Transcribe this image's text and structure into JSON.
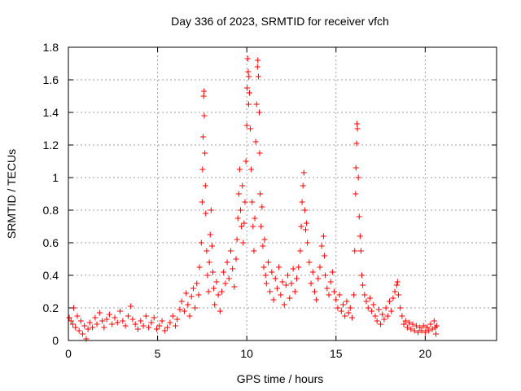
{
  "chart_data": {
    "type": "scatter",
    "title": "Day 336 of 2023, SRMTID for receiver vfch",
    "xlabel": "GPS time / hours",
    "ylabel": "SRMTID / TECUs",
    "xlim": [
      0,
      24
    ],
    "ylim": [
      0,
      1.8
    ],
    "xticks": [
      0,
      5,
      10,
      15,
      20
    ],
    "yticks": [
      0,
      0.2,
      0.4,
      0.6,
      0.8,
      1,
      1.2,
      1.4,
      1.6,
      1.8
    ],
    "grid": true,
    "marker": "+",
    "color": "#ff0000",
    "series": [
      {
        "name": "SRMTID",
        "points": [
          [
            0.05,
            0.14
          ],
          [
            0.15,
            0.12
          ],
          [
            0.25,
            0.1
          ],
          [
            0.3,
            0.2
          ],
          [
            0.4,
            0.08
          ],
          [
            0.5,
            0.15
          ],
          [
            0.6,
            0.06
          ],
          [
            0.7,
            0.12
          ],
          [
            0.8,
            0.04
          ],
          [
            0.9,
            0.09
          ],
          [
            1.0,
            0.01
          ],
          [
            1.1,
            0.07
          ],
          [
            1.2,
            0.11
          ],
          [
            1.35,
            0.08
          ],
          [
            1.5,
            0.14
          ],
          [
            1.6,
            0.1
          ],
          [
            1.75,
            0.17
          ],
          [
            1.9,
            0.12
          ],
          [
            2.0,
            0.08
          ],
          [
            2.15,
            0.13
          ],
          [
            2.3,
            0.16
          ],
          [
            2.45,
            0.1
          ],
          [
            2.6,
            0.14
          ],
          [
            2.75,
            0.11
          ],
          [
            2.9,
            0.18
          ],
          [
            3.05,
            0.12
          ],
          [
            3.2,
            0.09
          ],
          [
            3.35,
            0.15
          ],
          [
            3.5,
            0.21
          ],
          [
            3.6,
            0.13
          ],
          [
            3.75,
            0.1
          ],
          [
            3.9,
            0.07
          ],
          [
            4.05,
            0.12
          ],
          [
            4.2,
            0.09
          ],
          [
            4.35,
            0.15
          ],
          [
            4.5,
            0.08
          ],
          [
            4.65,
            0.11
          ],
          [
            4.8,
            0.14
          ],
          [
            4.95,
            0.07
          ],
          [
            5.1,
            0.09
          ],
          [
            5.25,
            0.12
          ],
          [
            5.4,
            0.06
          ],
          [
            5.55,
            0.08
          ],
          [
            5.7,
            0.11
          ],
          [
            5.85,
            0.15
          ],
          [
            6.0,
            0.09
          ],
          [
            6.1,
            0.13
          ],
          [
            6.25,
            0.19
          ],
          [
            6.35,
            0.24
          ],
          [
            6.5,
            0.18
          ],
          [
            6.6,
            0.29
          ],
          [
            6.7,
            0.22
          ],
          [
            6.8,
            0.15
          ],
          [
            6.9,
            0.27
          ],
          [
            7.0,
            0.32
          ],
          [
            7.1,
            0.2
          ],
          [
            7.2,
            0.35
          ],
          [
            7.3,
            0.28
          ],
          [
            7.35,
            0.45
          ],
          [
            7.45,
            0.6
          ],
          [
            7.5,
            0.85
          ],
          [
            7.52,
            1.05
          ],
          [
            7.55,
            1.25
          ],
          [
            7.58,
            1.5
          ],
          [
            7.6,
            1.53
          ],
          [
            7.62,
            1.38
          ],
          [
            7.65,
            1.15
          ],
          [
            7.68,
            0.95
          ],
          [
            7.7,
            0.78
          ],
          [
            7.75,
            0.55
          ],
          [
            7.8,
            0.4
          ],
          [
            7.85,
            0.3
          ],
          [
            7.9,
            0.48
          ],
          [
            7.95,
            0.65
          ],
          [
            8.0,
            0.8
          ],
          [
            8.05,
            0.58
          ],
          [
            8.1,
            0.42
          ],
          [
            8.15,
            0.32
          ],
          [
            8.2,
            0.22
          ],
          [
            8.3,
            0.36
          ],
          [
            8.4,
            0.28
          ],
          [
            8.5,
            0.18
          ],
          [
            8.6,
            0.3
          ],
          [
            8.7,
            0.42
          ],
          [
            8.8,
            0.35
          ],
          [
            8.9,
            0.48
          ],
          [
            9.0,
            0.38
          ],
          [
            9.1,
            0.55
          ],
          [
            9.2,
            0.44
          ],
          [
            9.3,
            0.33
          ],
          [
            9.4,
            0.5
          ],
          [
            9.45,
            0.62
          ],
          [
            9.5,
            0.75
          ],
          [
            9.55,
            0.9
          ],
          [
            9.6,
            1.05
          ],
          [
            9.65,
            0.8
          ],
          [
            9.7,
            0.7
          ],
          [
            9.75,
            0.95
          ],
          [
            9.8,
            0.6
          ],
          [
            9.85,
            0.72
          ],
          [
            9.9,
            0.85
          ],
          [
            9.95,
            1.1
          ],
          [
            10.0,
            1.32
          ],
          [
            10.02,
            1.55
          ],
          [
            10.05,
            1.73
          ],
          [
            10.08,
            1.65
          ],
          [
            10.1,
            1.45
          ],
          [
            10.12,
            1.62
          ],
          [
            10.15,
            1.52
          ],
          [
            10.2,
            1.3
          ],
          [
            10.25,
            1.05
          ],
          [
            10.3,
            0.85
          ],
          [
            10.35,
            0.7
          ],
          [
            10.4,
            0.55
          ],
          [
            10.45,
            0.75
          ],
          [
            10.5,
            1.22
          ],
          [
            10.55,
            1.45
          ],
          [
            10.6,
            1.68
          ],
          [
            10.62,
            1.72
          ],
          [
            10.65,
            1.62
          ],
          [
            10.7,
            1.4
          ],
          [
            10.72,
            1.15
          ],
          [
            10.75,
            0.9
          ],
          [
            10.8,
            0.7
          ],
          [
            10.85,
            0.82
          ],
          [
            10.9,
            0.58
          ],
          [
            10.95,
            0.45
          ],
          [
            11.0,
            0.62
          ],
          [
            11.05,
            0.4
          ],
          [
            11.1,
            0.35
          ],
          [
            11.2,
            0.48
          ],
          [
            11.3,
            0.3
          ],
          [
            11.4,
            0.42
          ],
          [
            11.5,
            0.25
          ],
          [
            11.6,
            0.38
          ],
          [
            11.7,
            0.32
          ],
          [
            11.8,
            0.45
          ],
          [
            11.9,
            0.28
          ],
          [
            12.0,
            0.36
          ],
          [
            12.1,
            0.22
          ],
          [
            12.2,
            0.34
          ],
          [
            12.3,
            0.4
          ],
          [
            12.4,
            0.26
          ],
          [
            12.5,
            0.35
          ],
          [
            12.6,
            0.44
          ],
          [
            12.7,
            0.3
          ],
          [
            12.8,
            0.38
          ],
          [
            12.9,
            0.45
          ],
          [
            13.0,
            0.55
          ],
          [
            13.05,
            0.7
          ],
          [
            13.1,
            0.85
          ],
          [
            13.15,
            0.95
          ],
          [
            13.2,
            1.03
          ],
          [
            13.25,
            0.8
          ],
          [
            13.3,
            0.68
          ],
          [
            13.35,
            0.72
          ],
          [
            13.4,
            0.6
          ],
          [
            13.5,
            0.48
          ],
          [
            13.6,
            0.35
          ],
          [
            13.7,
            0.42
          ],
          [
            13.8,
            0.3
          ],
          [
            13.9,
            0.25
          ],
          [
            14.0,
            0.38
          ],
          [
            14.1,
            0.45
          ],
          [
            14.2,
            0.58
          ],
          [
            14.3,
            0.64
          ],
          [
            14.35,
            0.52
          ],
          [
            14.4,
            0.4
          ],
          [
            14.5,
            0.32
          ],
          [
            14.6,
            0.28
          ],
          [
            14.7,
            0.36
          ],
          [
            14.8,
            0.42
          ],
          [
            14.9,
            0.3
          ],
          [
            15.0,
            0.25
          ],
          [
            15.1,
            0.2
          ],
          [
            15.2,
            0.28
          ],
          [
            15.3,
            0.18
          ],
          [
            15.4,
            0.22
          ],
          [
            15.5,
            0.15
          ],
          [
            15.6,
            0.24
          ],
          [
            15.7,
            0.17
          ],
          [
            15.8,
            0.2
          ],
          [
            15.9,
            0.14
          ],
          [
            16.0,
            0.28
          ],
          [
            16.05,
            0.55
          ],
          [
            16.1,
            0.9
          ],
          [
            16.12,
            1.06
          ],
          [
            16.15,
            1.21
          ],
          [
            16.18,
            1.33
          ],
          [
            16.2,
            1.3
          ],
          [
            16.25,
            1.0
          ],
          [
            16.3,
            0.76
          ],
          [
            16.35,
            0.64
          ],
          [
            16.4,
            0.55
          ],
          [
            16.45,
            0.4
          ],
          [
            16.5,
            0.34
          ],
          [
            16.6,
            0.28
          ],
          [
            16.7,
            0.24
          ],
          [
            16.8,
            0.2
          ],
          [
            16.9,
            0.26
          ],
          [
            17.0,
            0.18
          ],
          [
            17.1,
            0.22
          ],
          [
            17.2,
            0.15
          ],
          [
            17.3,
            0.12
          ],
          [
            17.4,
            0.19
          ],
          [
            17.5,
            0.1
          ],
          [
            17.6,
            0.16
          ],
          [
            17.7,
            0.13
          ],
          [
            17.8,
            0.2
          ],
          [
            17.9,
            0.15
          ],
          [
            18.0,
            0.24
          ],
          [
            18.1,
            0.18
          ],
          [
            18.2,
            0.26
          ],
          [
            18.3,
            0.3
          ],
          [
            18.4,
            0.34
          ],
          [
            18.45,
            0.36
          ],
          [
            18.5,
            0.28
          ],
          [
            18.6,
            0.2
          ],
          [
            18.7,
            0.15
          ],
          [
            18.8,
            0.1
          ],
          [
            18.9,
            0.12
          ],
          [
            19.0,
            0.08
          ],
          [
            19.1,
            0.11
          ],
          [
            19.2,
            0.07
          ],
          [
            19.3,
            0.1
          ],
          [
            19.4,
            0.06
          ],
          [
            19.5,
            0.09
          ],
          [
            19.6,
            0.05
          ],
          [
            19.7,
            0.08
          ],
          [
            19.8,
            0.06
          ],
          [
            19.9,
            0.09
          ],
          [
            20.0,
            0.05
          ],
          [
            20.1,
            0.08
          ],
          [
            20.2,
            0.06
          ],
          [
            20.3,
            0.1
          ],
          [
            20.4,
            0.07
          ],
          [
            20.5,
            0.12
          ],
          [
            20.55,
            0.08
          ],
          [
            20.6,
            0.04
          ],
          [
            20.65,
            0.09
          ]
        ]
      }
    ]
  }
}
